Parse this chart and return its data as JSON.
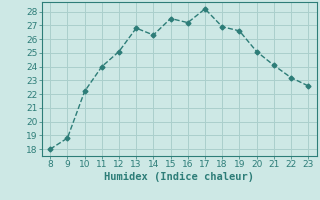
{
  "x": [
    8,
    9,
    10,
    11,
    12,
    13,
    14,
    15,
    16,
    17,
    18,
    19,
    20,
    21,
    22,
    23
  ],
  "y": [
    18.0,
    18.8,
    22.2,
    24.0,
    25.1,
    26.8,
    26.3,
    27.5,
    27.2,
    28.2,
    26.9,
    26.6,
    25.1,
    24.1,
    23.2,
    22.6
  ],
  "xlabel": "Humidex (Indice chaleur)",
  "xlim": [
    7.5,
    23.5
  ],
  "ylim": [
    17.5,
    28.7
  ],
  "xticks": [
    8,
    9,
    10,
    11,
    12,
    13,
    14,
    15,
    16,
    17,
    18,
    19,
    20,
    21,
    22,
    23
  ],
  "yticks": [
    18,
    19,
    20,
    21,
    22,
    23,
    24,
    25,
    26,
    27,
    28
  ],
  "line_color": "#2d7d78",
  "bg_color": "#cde8e5",
  "grid_color": "#aacfcc",
  "tick_fontsize": 6.5,
  "xlabel_fontsize": 7.5
}
